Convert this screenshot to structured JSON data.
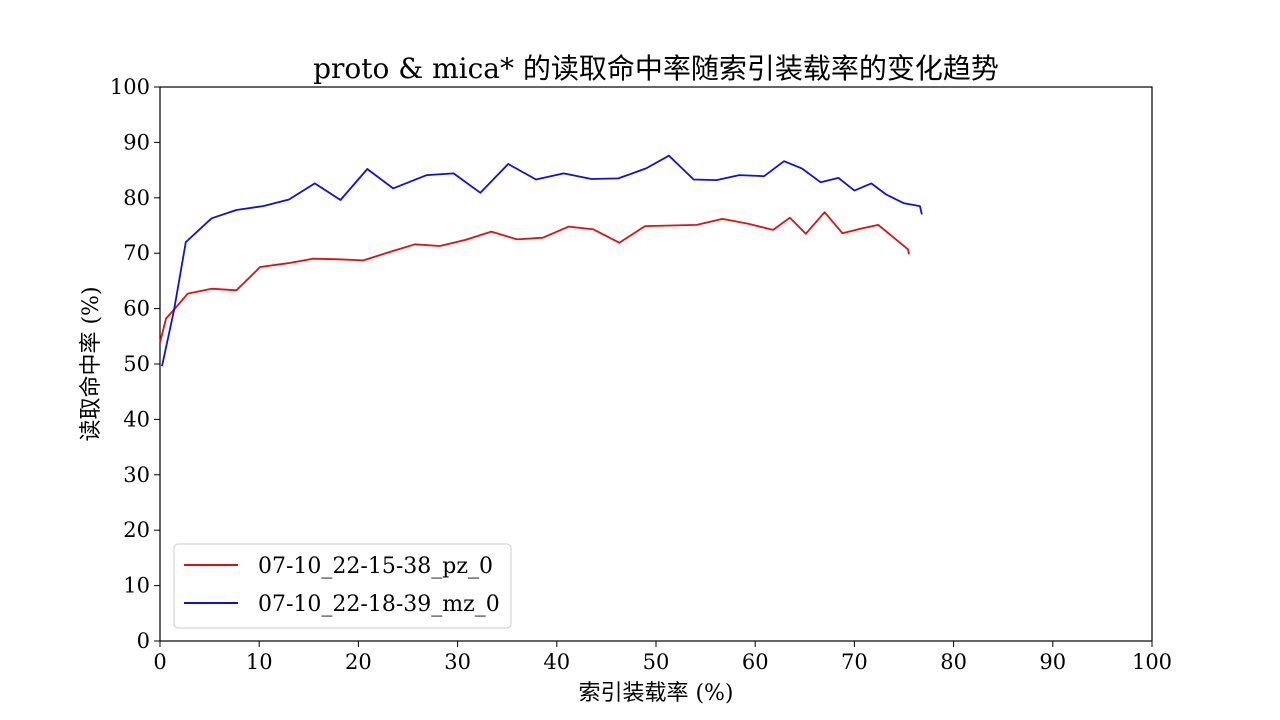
{
  "chart_data": {
    "type": "line",
    "title": "proto & mica* 的读取命中率随索引装载率的变化趋势",
    "xlabel": "索引装载率 (%)",
    "ylabel": "读取命中率 (%)",
    "xlim": [
      0,
      100
    ],
    "ylim": [
      0,
      100
    ],
    "xticks": [
      "0",
      "10",
      "20",
      "30",
      "40",
      "50",
      "60",
      "70",
      "80",
      "90",
      "100"
    ],
    "yticks": [
      "0",
      "10",
      "20",
      "30",
      "40",
      "50",
      "60",
      "70",
      "80",
      "90",
      "100"
    ],
    "grid": false,
    "legend_position": "lower-left",
    "series": [
      {
        "name": "07-10_22-15-38_pz_0",
        "color": "#e01010",
        "x": [
          0.0,
          0.6,
          1.5,
          2.8,
          5.2,
          7.7,
          10.1,
          12.9,
          15.4,
          18.0,
          20.5,
          23.1,
          25.7,
          28.2,
          30.8,
          33.4,
          36.0,
          38.6,
          41.2,
          43.7,
          46.3,
          48.9,
          51.5,
          54.1,
          56.7,
          59.3,
          61.8,
          63.5,
          65.1,
          67.0,
          68.8,
          70.6,
          72.4,
          75.4,
          75.5
        ],
        "y": [
          53.9,
          58.2,
          60.0,
          62.7,
          63.6,
          63.3,
          67.5,
          68.2,
          69.0,
          68.9,
          68.7,
          70.2,
          71.6,
          71.3,
          72.4,
          73.9,
          72.5,
          72.8,
          74.8,
          74.3,
          71.9,
          74.9,
          75.0,
          75.1,
          76.2,
          75.3,
          74.2,
          76.4,
          73.5,
          77.4,
          73.6,
          74.4,
          75.1,
          70.7,
          69.8
        ]
      },
      {
        "name": "07-10_22-18-39_mz_0",
        "color": "#1010d8",
        "x": [
          0.2,
          1.4,
          2.6,
          5.2,
          7.7,
          10.4,
          13.0,
          15.6,
          18.2,
          20.9,
          23.5,
          26.9,
          29.6,
          32.3,
          35.1,
          37.9,
          40.7,
          43.5,
          46.2,
          49.0,
          51.3,
          53.8,
          56.1,
          58.4,
          60.9,
          62.9,
          64.7,
          66.6,
          68.4,
          70.0,
          71.7,
          73.2,
          75.0,
          76.6,
          76.8
        ],
        "y": [
          49.6,
          59.6,
          72.0,
          76.3,
          77.8,
          78.5,
          79.7,
          82.6,
          79.6,
          85.2,
          81.7,
          84.1,
          84.4,
          80.9,
          86.1,
          83.3,
          84.4,
          83.4,
          83.5,
          85.3,
          87.6,
          83.3,
          83.2,
          84.1,
          83.9,
          86.6,
          85.3,
          82.8,
          83.6,
          81.3,
          82.6,
          80.6,
          79.0,
          78.5,
          77.0
        ]
      }
    ]
  }
}
